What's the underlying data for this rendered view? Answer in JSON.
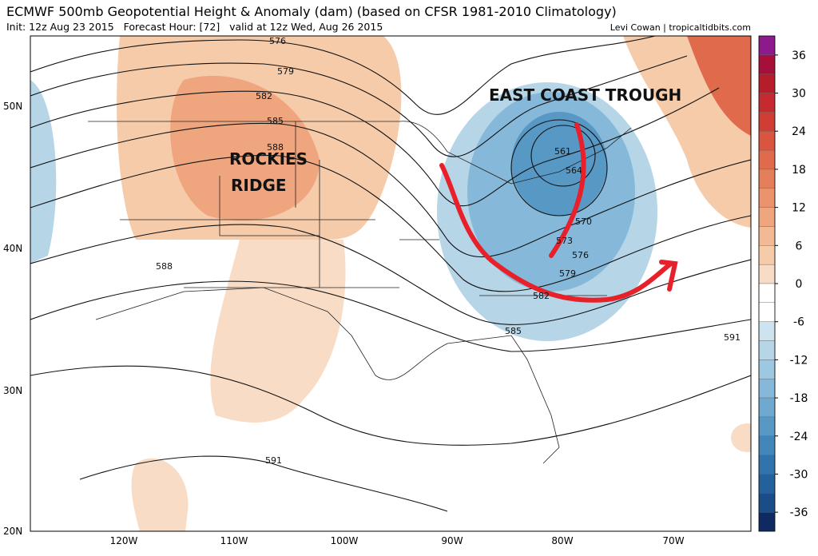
{
  "header": {
    "title": "ECMWF 500mb Geopotential Height & Anomaly (dam) (based on CFSR 1981-2010 Climatology)",
    "subtitle": "Init: 12z Aug 23 2015   Forecast Hour: [72]   valid at 12z Wed, Aug 26 2015",
    "credit": "Levi Cowan | tropicaltidbits.com"
  },
  "annotations": [
    "EAST COAST TROUGH",
    "ROCKIES",
    "RIDGE"
  ],
  "contour_labels": [
    "576",
    "579",
    "582",
    "585",
    "588",
    "561",
    "564",
    "570",
    "573",
    "576",
    "579",
    "582",
    "585",
    "588",
    "591",
    "591"
  ],
  "lat_labels": [
    "50N",
    "40N",
    "30N",
    "20N"
  ],
  "lon_labels": [
    "120W",
    "110W",
    "100W",
    "90W",
    "80W",
    "70W"
  ],
  "colorbar": {
    "range": [
      -39,
      39
    ],
    "ticks": [
      36,
      30,
      24,
      18,
      12,
      6,
      0,
      -6,
      -12,
      -18,
      -24,
      -30,
      -36
    ],
    "colors": [
      "#8c1a8c",
      "#a50f3a",
      "#b51d2a",
      "#c42a2f",
      "#cf3d35",
      "#d9553f",
      "#e06a4c",
      "#e57f5b",
      "#ea936c",
      "#efa67f",
      "#f3b994",
      "#f6cbaa",
      "#f9dcc5",
      "#ffffff",
      "#ffffff",
      "#cde3ee",
      "#b6d6e8",
      "#9ec8e1",
      "#86b9d9",
      "#6fa9d0",
      "#5898c5",
      "#4286ba",
      "#3173ac",
      "#24619c",
      "#1a4d88",
      "#0f2a63"
    ]
  }
}
